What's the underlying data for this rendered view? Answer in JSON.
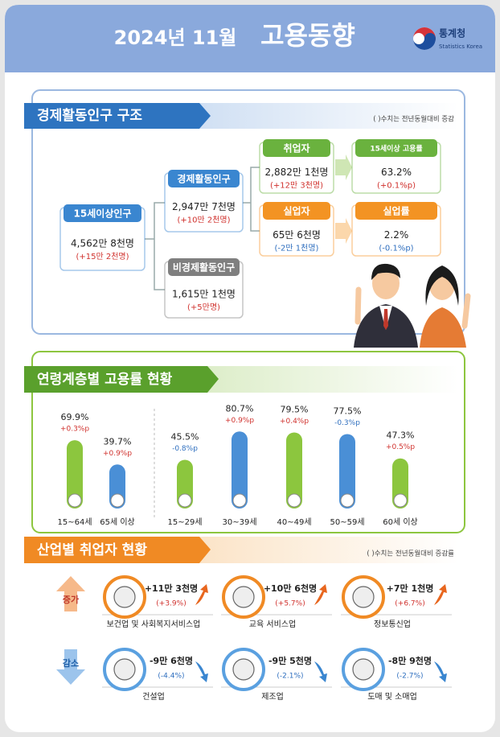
{
  "header": {
    "title_date": "2024년  11월",
    "title_main": "고용동향",
    "logo": "통계청",
    "logo_sub": "Statistics Korea"
  },
  "structure": {
    "title": "경제활동인구 구조",
    "note": "( )수치는 전년동월대비 증감",
    "nodes": [
      {
        "label": "15세이상인구",
        "value": "4,562만 8천명",
        "change": "(+15만 2천명)"
      },
      {
        "label": "경제활동인구",
        "value": "2,947만 7천명",
        "change": "(+10만 2천명)"
      },
      {
        "label": "비경제활동인구",
        "value": "1,615만 1천명",
        "change": "(+5만명)"
      },
      {
        "label": "취업자",
        "value": "2,882만 1천명",
        "change": "(+12만 3천명)"
      },
      {
        "label": "실업자",
        "value": "65만 6천명",
        "change": "(-2만 1천명)"
      },
      {
        "label": "15세이상 고용률",
        "value": "63.2%",
        "change": "(+0.1%p)"
      },
      {
        "label": "실업률",
        "value": "2.2%",
        "change": "(-0.1%p)"
      }
    ]
  },
  "chart_data": {
    "type": "bar",
    "title": "연령계층별 고용률 현황",
    "categories": [
      "15~64세",
      "65세 이상",
      "15~29세",
      "30~39세",
      "40~49세",
      "50~59세",
      "60세 이상"
    ],
    "values": [
      69.9,
      39.7,
      45.5,
      80.7,
      79.5,
      77.5,
      47.3
    ],
    "value_labels": [
      "69.9%",
      "39.7%",
      "45.5%",
      "80.7%",
      "79.5%",
      "77.5%",
      "47.3%"
    ],
    "changes": [
      "+0.3%p",
      "+0.9%p",
      "-0.8%p",
      "+0.9%p",
      "+0.4%p",
      "-0.3%p",
      "+0.5%p"
    ],
    "colors": [
      "#8cc63e",
      "#4a8fd6",
      "#8cc63e",
      "#4a8fd6",
      "#8cc63e",
      "#4a8fd6",
      "#8cc63e"
    ],
    "ylim": [
      -15,
      90
    ]
  },
  "industry": {
    "title": "산업별 취업자 현황",
    "note": "( )수치는 전년동월대비 증감률",
    "increase_label": "증가",
    "decrease_label": "감소",
    "increase": [
      {
        "value": "+11만 3천명",
        "change": "(+3.9%)",
        "name": "보건업 및 사회복지서비스업"
      },
      {
        "value": "+10만 6천명",
        "change": "(+5.7%)",
        "name": "교육 서비스업"
      },
      {
        "value": "+7만 1천명",
        "change": "(+6.7%)",
        "name": "정보통신업"
      }
    ],
    "decrease": [
      {
        "value": "-9만 6천명",
        "change": "(-4.4%)",
        "name": "건설업"
      },
      {
        "value": "-9만 5천명",
        "change": "(-2.1%)",
        "name": "제조업"
      },
      {
        "value": "-8만 9천명",
        "change": "(-2.7%)",
        "name": "도매 및 소매업"
      }
    ]
  }
}
